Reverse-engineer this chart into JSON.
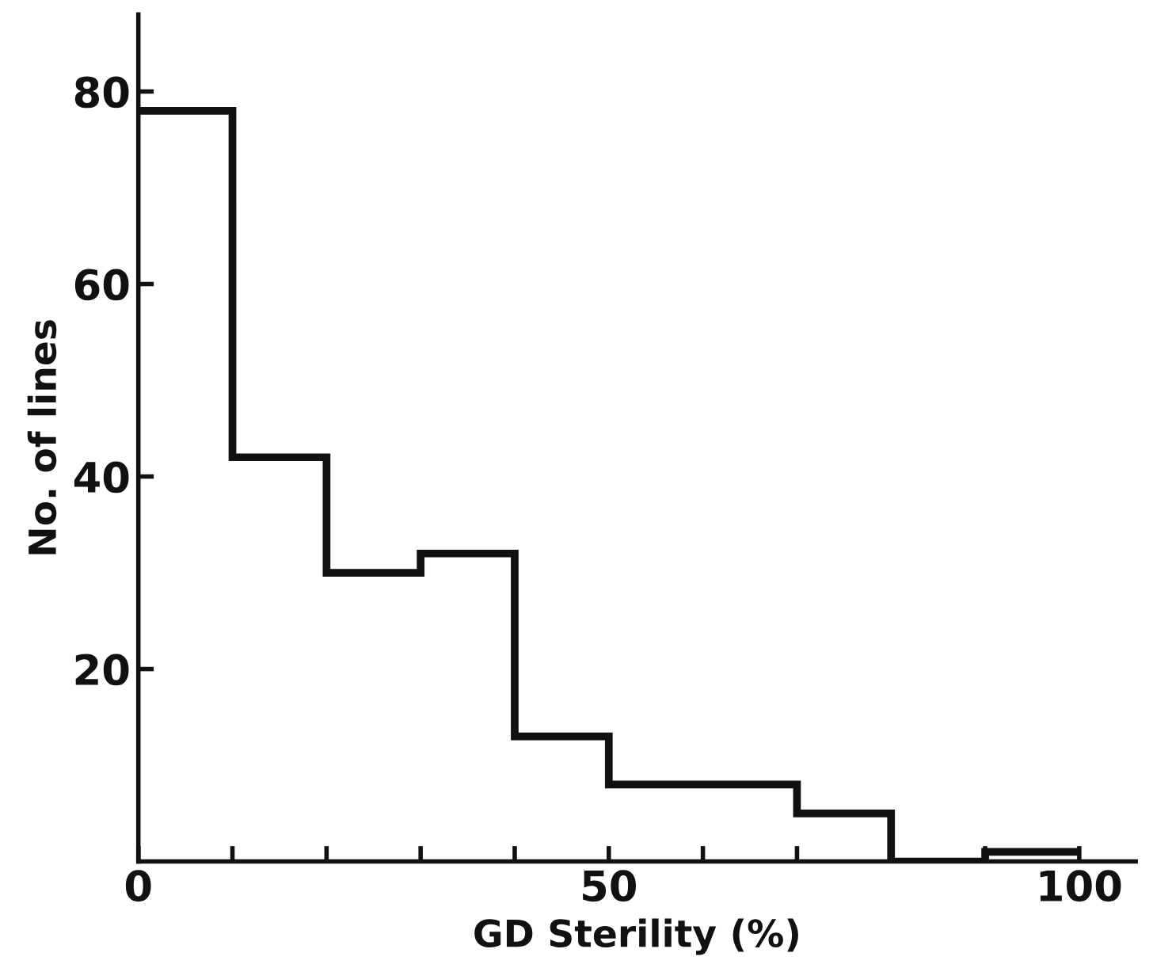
{
  "chart_data": {
    "type": "histogram",
    "xlabel": "GD Sterility (%)",
    "ylabel": "No. of lines",
    "bins": [
      0,
      10,
      20,
      30,
      40,
      50,
      60,
      70,
      80,
      90,
      100
    ],
    "values": [
      78,
      42,
      30,
      32,
      13,
      8,
      8,
      5,
      0,
      1
    ],
    "color": "#111111",
    "xlim": [
      0,
      106
    ],
    "ylim": [
      0,
      88
    ],
    "xticks": [
      0,
      {
        "value": 10,
        "label": null
      },
      {
        "value": 20,
        "label": null
      },
      {
        "value": 30,
        "label": null
      },
      {
        "value": 40,
        "label": null
      },
      50,
      {
        "value": 60,
        "label": null
      },
      {
        "value": 70,
        "label": null
      },
      {
        "value": 80,
        "label": null
      },
      {
        "value": 90,
        "label": null
      },
      100
    ],
    "yticks": [
      20,
      40,
      60,
      80
    ],
    "grid": false
  }
}
